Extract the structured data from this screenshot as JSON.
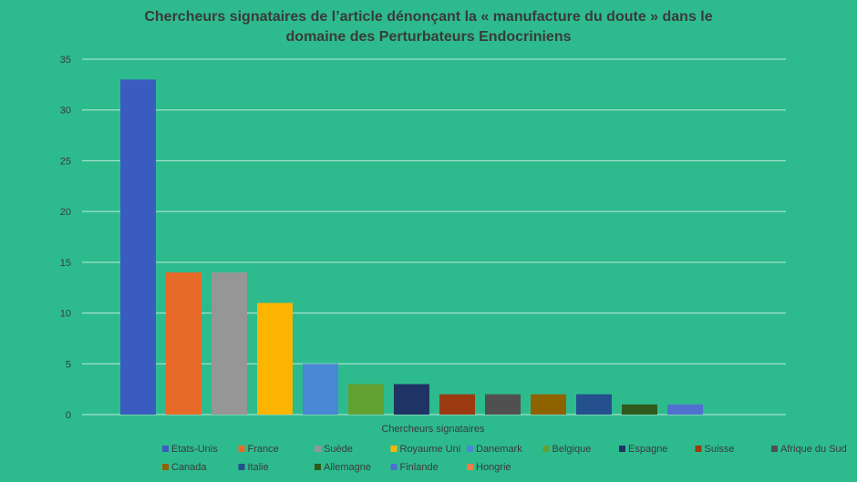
{
  "chart_data": {
    "type": "bar",
    "title_line1": "Chercheurs signataires de l’article dénonçant la « manufacture du doute » dans le",
    "title_line2": "domaine des Perturbateurs Endocriniens",
    "xlabel": "Chercheurs signataires",
    "ylabel": "",
    "ylim": [
      0,
      35
    ],
    "yticks": [
      0,
      5,
      10,
      15,
      20,
      25,
      30,
      35
    ],
    "grid": true,
    "legend_position": "bottom",
    "categories": [
      "Etats-Unis",
      "France",
      "Suède",
      "Royaume Uni",
      "Danemark",
      "Belgique",
      "Espagne",
      "Suisse",
      "Afrique du Sud",
      "Canada",
      "Italie",
      "Allemagne",
      "Finlande",
      "Hongrie"
    ],
    "values": [
      33,
      14,
      14,
      11,
      5,
      3,
      3,
      2,
      2,
      2,
      2,
      1,
      1,
      0
    ],
    "colors": [
      "#3a5cc0",
      "#e86a28",
      "#969696",
      "#fbb400",
      "#4a87d4",
      "#63a131",
      "#1f3464",
      "#9b3a10",
      "#505050",
      "#8f6200",
      "#24508e",
      "#2f5a1c",
      "#5070d0",
      "#f07c48"
    ]
  }
}
